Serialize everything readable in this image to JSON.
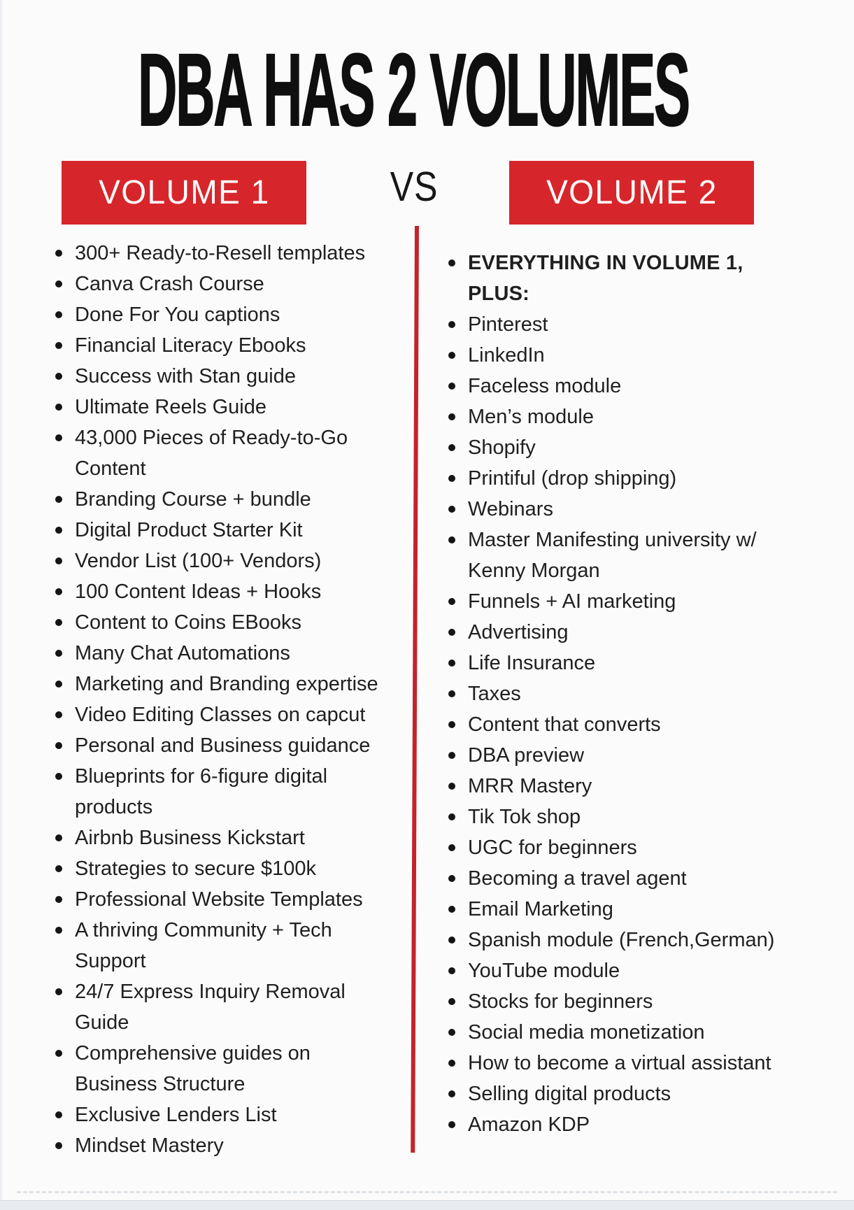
{
  "title": "DBA HAS 2 VOLUMES",
  "vs_label": "VS",
  "colors": {
    "accent_red": "#d7262b",
    "divider_red": "#c4232a",
    "headline_black": "#0f0f0f",
    "list_text": "#1f1f1f",
    "background": "#fbfbfc"
  },
  "volume1": {
    "label": "VOLUME 1",
    "items": [
      "300+ Ready-to-Resell templates",
      "Canva Crash Course",
      "Done For You captions",
      "Financial Literacy Ebooks",
      "Success with Stan guide",
      "Ultimate Reels Guide",
      "43,000 Pieces of Ready-to-Go Content",
      "Branding Course + bundle",
      "Digital Product Starter Kit",
      "Vendor List (100+ Vendors)",
      "100 Content Ideas + Hooks",
      "Content to Coins EBooks",
      "Many Chat Automations",
      "Marketing and Branding expertise",
      "Video Editing Classes on capcut",
      "Personal and Business guidance",
      "Blueprints for 6-figure digital products",
      "Airbnb Business Kickstart",
      "Strategies to secure $100k",
      "Professional Website Templates",
      "A thriving Community + Tech Support",
      "24/7 Express Inquiry Removal Guide",
      "Comprehensive guides on Business Structure",
      "Exclusive Lenders List",
      "Mindset Mastery"
    ]
  },
  "volume2": {
    "label": "VOLUME 2",
    "items": [
      "EVERYTHING IN VOLUME 1, PLUS:",
      "Pinterest",
      "LinkedIn",
      "Faceless module",
      "Men’s module",
      "Shopify",
      "Printiful (drop shipping)",
      "Webinars",
      "Master Manifesting university w/ Kenny Morgan",
      "Funnels + AI marketing",
      "Advertising",
      "Life Insurance",
      "Taxes",
      "Content that converts",
      "DBA preview",
      "MRR Mastery",
      "Tik Tok shop",
      "UGC for beginners",
      "Becoming a travel agent",
      "Email Marketing",
      "Spanish module (French,German)",
      "YouTube module",
      "Stocks for beginners",
      "Social media monetization",
      "How to become a virtual assistant",
      "Selling digital products",
      "Amazon KDP"
    ]
  }
}
